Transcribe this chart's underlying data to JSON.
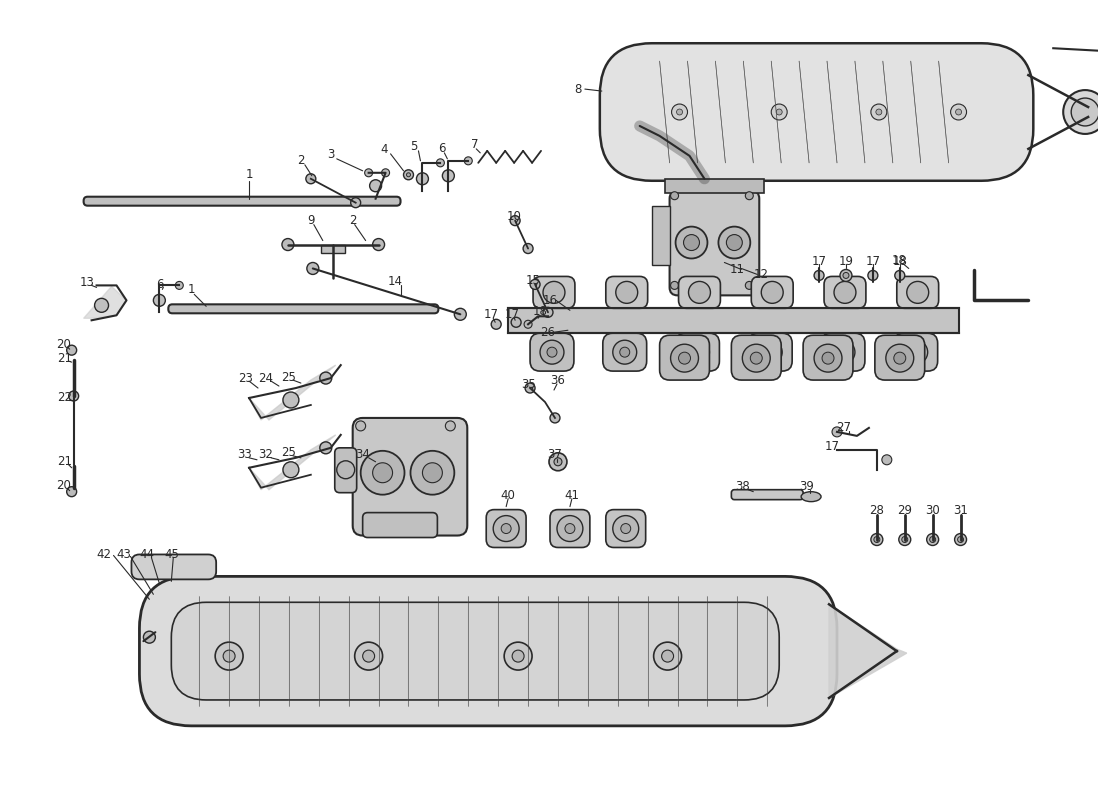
{
  "bg_color": "#ffffff",
  "line_color": "#2a2a2a",
  "figsize": [
    11.0,
    8.0
  ],
  "dpi": 100,
  "label_fontsize": 8.5
}
